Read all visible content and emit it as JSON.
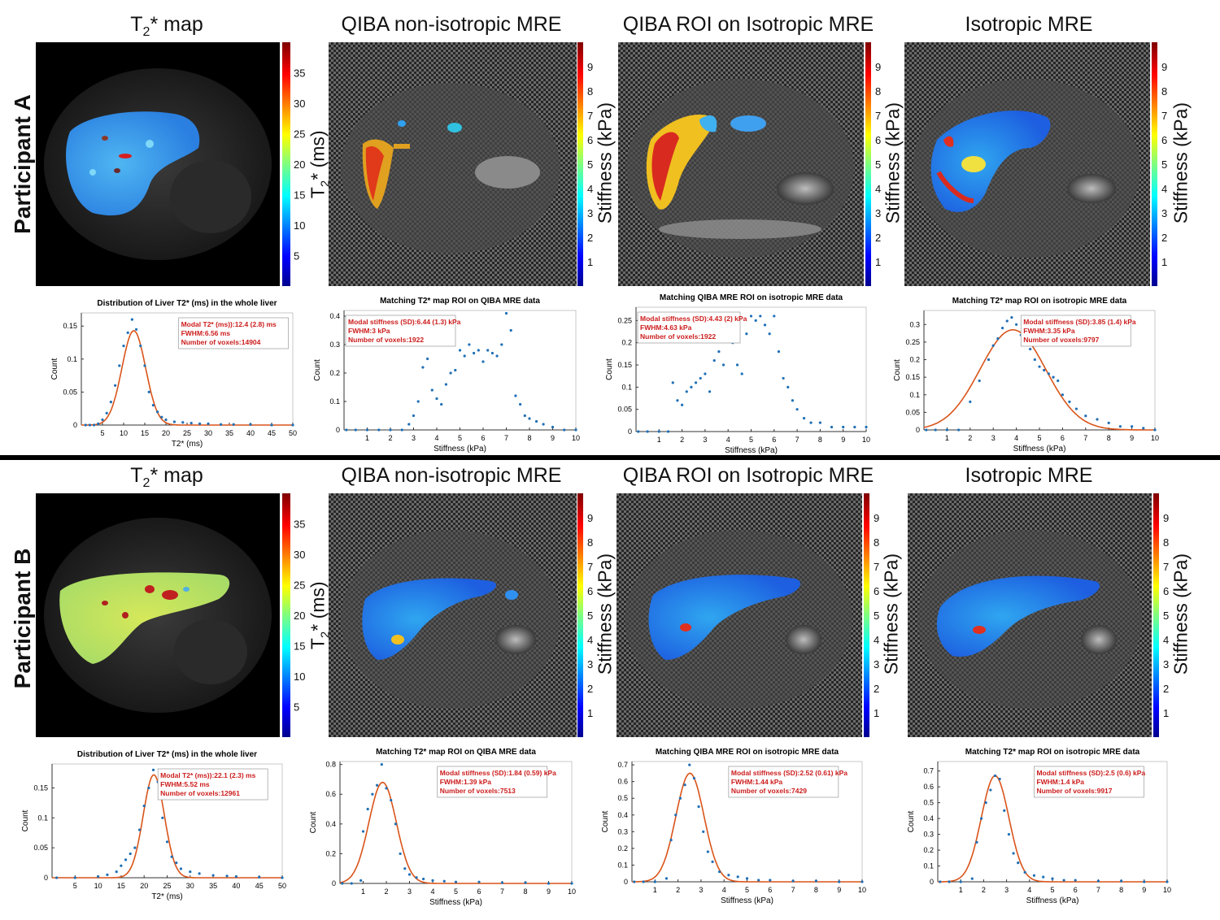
{
  "row_labels": [
    "Participant A",
    "Participant B"
  ],
  "panel_titles": {
    "t2": "T2* map",
    "qiba": "QIBA non-isotropic MRE",
    "qiba_roi": "QIBA ROI on Isotropic MRE",
    "iso": "Isotropic MRE"
  },
  "colorbar_labels": {
    "t2": "T2* (ms)",
    "stiff": "Stiffness (kPa)"
  },
  "colorbar_ticks": {
    "t2": [
      "5",
      "10",
      "15",
      "20",
      "25",
      "30",
      "35"
    ],
    "stiff": [
      "1",
      "2",
      "3",
      "4",
      "5",
      "6",
      "7",
      "8",
      "9"
    ]
  },
  "colors": {
    "liver_blue": "#2f8fe8",
    "liver_green": "#b8e055",
    "hot": "#d42020",
    "curve": "#d9541a",
    "dots": "#1f6fb5",
    "legend_text": "#cc1c1c"
  },
  "chart_data": [
    {
      "id": "A1",
      "type": "scatter",
      "title": "Distribution of Liver T2* (ms) in the whole liver",
      "xlabel": "T2* (ms)",
      "ylabel": "Count",
      "xlim": [
        0,
        50
      ],
      "ylim": [
        0,
        0.17
      ],
      "xticks": [
        5,
        10,
        15,
        20,
        25,
        30,
        35,
        40,
        45,
        50
      ],
      "yticks": [
        0,
        0.05,
        0.1,
        0.15
      ],
      "legend": [
        "Modal T2* (ms)):12.4 (2.8) ms",
        "FWHM:6.56 ms",
        "Number of voxels:14904"
      ],
      "fit": {
        "mu": 12.4,
        "sigma": 2.8,
        "amp": 0.143
      },
      "x": [
        1,
        2,
        3,
        4,
        5,
        6,
        7,
        8,
        9,
        10,
        11,
        12,
        13,
        14,
        15,
        16,
        17,
        18,
        19,
        20,
        22,
        24,
        26,
        28,
        30,
        33,
        36,
        40,
        45,
        50
      ],
      "y": [
        0,
        0,
        0,
        0.002,
        0.008,
        0.018,
        0.035,
        0.06,
        0.09,
        0.12,
        0.14,
        0.16,
        0.145,
        0.12,
        0.09,
        0.05,
        0.03,
        0.02,
        0.012,
        0.008,
        0.005,
        0.004,
        0.003,
        0.002,
        0.002,
        0.001,
        0.001,
        0.001,
        0,
        0
      ]
    },
    {
      "id": "A2",
      "type": "scatter",
      "title": "Matching T2* map ROI on QIBA MRE data",
      "xlabel": "Stiffness (kPa)",
      "ylabel": "Count",
      "xlim": [
        0,
        10
      ],
      "ylim": [
        0,
        0.42
      ],
      "xticks": [
        1,
        2,
        3,
        4,
        5,
        6,
        7,
        8,
        9,
        10
      ],
      "yticks": [
        0,
        0.1,
        0.2,
        0.3,
        0.4
      ],
      "legend": [
        "Modal stiffness (SD):6.44 (1.3) kPa",
        "FWHM:3 kPa",
        "Number of voxels:1922"
      ],
      "x": [
        0.1,
        0.5,
        1,
        1.5,
        2,
        2.5,
        2.8,
        3,
        3.2,
        3.4,
        3.6,
        3.8,
        4,
        4.2,
        4.4,
        4.6,
        4.8,
        5,
        5.2,
        5.4,
        5.6,
        5.8,
        6,
        6.2,
        6.4,
        6.6,
        6.8,
        7,
        7.2,
        7.4,
        7.6,
        7.8,
        8,
        8.3,
        8.6,
        9,
        9.5,
        10
      ],
      "y": [
        0,
        0,
        0,
        0,
        0,
        0,
        0.02,
        0.05,
        0.1,
        0.22,
        0.25,
        0.14,
        0.11,
        0.09,
        0.16,
        0.2,
        0.21,
        0.28,
        0.26,
        0.3,
        0.27,
        0.28,
        0.24,
        0.28,
        0.27,
        0.26,
        0.3,
        0.41,
        0.35,
        0.12,
        0.09,
        0.05,
        0.04,
        0.03,
        0.02,
        0.01,
        0,
        0
      ]
    },
    {
      "id": "A3",
      "type": "scatter",
      "title": "Matching QIBA MRE ROI on isotropic MRE data",
      "xlabel": "Stiffness (kPa)",
      "ylabel": "Count",
      "xlim": [
        0,
        10
      ],
      "ylim": [
        0,
        0.28
      ],
      "xticks": [
        1,
        2,
        3,
        4,
        5,
        6,
        7,
        8,
        9,
        10
      ],
      "yticks": [
        0,
        0.05,
        0.1,
        0.15,
        0.2,
        0.25
      ],
      "legend": [
        "Modal stiffness (SD):4.43 (2) kPa",
        "FWHM:4.63 kPa",
        "Number of voxels:1922"
      ],
      "x": [
        0.1,
        0.5,
        1,
        1.4,
        1.6,
        1.8,
        2,
        2.2,
        2.4,
        2.6,
        2.8,
        3,
        3.2,
        3.4,
        3.6,
        3.8,
        4,
        4.2,
        4.4,
        4.6,
        4.8,
        5,
        5.2,
        5.4,
        5.6,
        5.8,
        6,
        6.2,
        6.4,
        6.6,
        6.8,
        7,
        7.3,
        7.6,
        8,
        8.5,
        9,
        9.5,
        10
      ],
      "y": [
        0,
        0,
        0,
        0,
        0.11,
        0.07,
        0.06,
        0.09,
        0.1,
        0.11,
        0.12,
        0.13,
        0.09,
        0.16,
        0.18,
        0.15,
        0.24,
        0.2,
        0.15,
        0.13,
        0.22,
        0.26,
        0.25,
        0.26,
        0.24,
        0.22,
        0.26,
        0.18,
        0.12,
        0.1,
        0.07,
        0.05,
        0.03,
        0.02,
        0.02,
        0.01,
        0.01,
        0.01,
        0.01
      ]
    },
    {
      "id": "A4",
      "type": "scatter",
      "title": "Matching T2* map ROI on isotropic MRE data",
      "xlabel": "Stiffness (kPa)",
      "ylabel": "Count",
      "xlim": [
        0,
        10
      ],
      "ylim": [
        0,
        0.34
      ],
      "xticks": [
        1,
        2,
        3,
        4,
        5,
        6,
        7,
        8,
        9,
        10
      ],
      "yticks": [
        0,
        0.05,
        0.1,
        0.15,
        0.2,
        0.25,
        0.3
      ],
      "legend": [
        "Modal stiffness (SD):3.85 (1.4) kPa",
        "FWHM:3.35 kPa",
        "Number of voxels:9797"
      ],
      "fit": {
        "mu": 3.85,
        "sigma": 1.42,
        "amp": 0.285
      },
      "x": [
        0.1,
        0.5,
        1,
        1.5,
        2,
        2.4,
        2.8,
        3,
        3.2,
        3.4,
        3.6,
        3.8,
        4,
        4.2,
        4.4,
        4.6,
        4.8,
        5,
        5.2,
        5.4,
        5.6,
        5.8,
        6,
        6.3,
        6.6,
        7,
        7.5,
        8,
        8.5,
        9,
        9.5,
        10
      ],
      "y": [
        0,
        0,
        0,
        0,
        0.08,
        0.14,
        0.2,
        0.24,
        0.26,
        0.29,
        0.31,
        0.32,
        0.3,
        0.27,
        0.25,
        0.23,
        0.2,
        0.18,
        0.17,
        0.16,
        0.15,
        0.14,
        0.1,
        0.08,
        0.06,
        0.04,
        0.03,
        0.02,
        0.01,
        0.01,
        0.005,
        0
      ]
    },
    {
      "id": "B1",
      "type": "scatter",
      "title": "Distribution of Liver T2* (ms) in the whole liver",
      "xlabel": "T2* (ms)",
      "ylabel": "Count",
      "xlim": [
        0,
        50
      ],
      "ylim": [
        0,
        0.19
      ],
      "xticks": [
        5,
        10,
        15,
        20,
        25,
        30,
        35,
        40,
        45,
        50
      ],
      "yticks": [
        0,
        0.05,
        0.1,
        0.15
      ],
      "legend": [
        "Modal T2* (ms)):22.1 (2.3) ms",
        "FWHM:5.52 ms",
        "Number of voxels:12961"
      ],
      "fit": {
        "mu": 22.1,
        "sigma": 2.3,
        "amp": 0.172
      },
      "x": [
        1,
        5,
        10,
        12,
        14,
        15,
        16,
        17,
        18,
        19,
        20,
        21,
        22,
        23,
        24,
        25,
        26,
        27,
        28,
        30,
        32,
        35,
        38,
        40,
        45,
        50
      ],
      "y": [
        0,
        0,
        0.002,
        0.005,
        0.01,
        0.02,
        0.03,
        0.04,
        0.05,
        0.08,
        0.12,
        0.15,
        0.18,
        0.16,
        0.1,
        0.06,
        0.035,
        0.025,
        0.015,
        0.01,
        0.007,
        0.004,
        0.003,
        0.002,
        0.001,
        0
      ]
    },
    {
      "id": "B2",
      "type": "scatter",
      "title": "Matching T2* map ROI on QIBA MRE data",
      "xlabel": "Stiffness (kPa)",
      "ylabel": "Count",
      "xlim": [
        0,
        10
      ],
      "ylim": [
        0,
        0.82
      ],
      "xticks": [
        1,
        2,
        3,
        4,
        5,
        6,
        7,
        8,
        9,
        10
      ],
      "yticks": [
        0,
        0.2,
        0.4,
        0.6,
        0.8
      ],
      "legend": [
        "Modal stiffness (SD):1.84 (0.59) kPa",
        "FWHM:1.39 kPa",
        "Number of voxels:7513"
      ],
      "fit": {
        "mu": 1.84,
        "sigma": 0.59,
        "amp": 0.68
      },
      "x": [
        0.1,
        0.5,
        0.9,
        1,
        1.2,
        1.4,
        1.6,
        1.8,
        2,
        2.2,
        2.4,
        2.6,
        2.8,
        3,
        3.3,
        3.6,
        4,
        4.5,
        5,
        6,
        7,
        8,
        9,
        10
      ],
      "y": [
        0,
        0,
        0.02,
        0.35,
        0.5,
        0.6,
        0.66,
        0.8,
        0.64,
        0.56,
        0.4,
        0.2,
        0.1,
        0.06,
        0.04,
        0.03,
        0.02,
        0.015,
        0.01,
        0.01,
        0.005,
        0.005,
        0,
        0
      ]
    },
    {
      "id": "B3",
      "type": "scatter",
      "title": "Matching QIBA MRE ROI on isotropic MRE data",
      "xlabel": "Stiffness (kPa)",
      "ylabel": "Count",
      "xlim": [
        0,
        10
      ],
      "ylim": [
        0,
        0.72
      ],
      "xticks": [
        1,
        2,
        3,
        4,
        5,
        6,
        7,
        8,
        9,
        10
      ],
      "yticks": [
        0,
        0.1,
        0.2,
        0.3,
        0.4,
        0.5,
        0.6,
        0.7
      ],
      "legend": [
        "Modal stiffness (SD):2.52 (0.61) kPa",
        "FWHM:1.44 kPa",
        "Number of voxels:7429"
      ],
      "fit": {
        "mu": 2.52,
        "sigma": 0.61,
        "amp": 0.65
      },
      "x": [
        0.1,
        0.5,
        1,
        1.5,
        1.7,
        1.9,
        2.1,
        2.3,
        2.5,
        2.7,
        2.9,
        3.1,
        3.3,
        3.5,
        3.8,
        4.2,
        4.6,
        5,
        5.5,
        6,
        7,
        8,
        9,
        10
      ],
      "y": [
        0,
        0,
        0,
        0.02,
        0.25,
        0.4,
        0.5,
        0.58,
        0.7,
        0.62,
        0.45,
        0.3,
        0.18,
        0.12,
        0.06,
        0.04,
        0.03,
        0.02,
        0.01,
        0.01,
        0.005,
        0.005,
        0,
        0
      ]
    },
    {
      "id": "B4",
      "type": "scatter",
      "title": "Matching T2* map ROI on isotropic MRE data",
      "xlabel": "Stiffness (kPa)",
      "ylabel": "Count",
      "xlim": [
        0,
        10
      ],
      "ylim": [
        0,
        0.76
      ],
      "xticks": [
        1,
        2,
        3,
        4,
        5,
        6,
        7,
        8,
        9,
        10
      ],
      "yticks": [
        0,
        0.1,
        0.2,
        0.3,
        0.4,
        0.5,
        0.6,
        0.7
      ],
      "legend": [
        "Modal stiffness (SD):2.5 (0.6) kPa",
        "FWHM:1.4 kPa",
        "Number of voxels:9917"
      ],
      "fit": {
        "mu": 2.5,
        "sigma": 0.6,
        "amp": 0.67
      },
      "x": [
        0.1,
        0.5,
        1,
        1.5,
        1.7,
        1.9,
        2.1,
        2.3,
        2.5,
        2.7,
        2.9,
        3.1,
        3.3,
        3.5,
        3.8,
        4.2,
        4.6,
        5,
        5.5,
        6,
        7,
        8,
        9,
        10
      ],
      "y": [
        0,
        0,
        0,
        0.02,
        0.25,
        0.4,
        0.5,
        0.58,
        0.67,
        0.65,
        0.45,
        0.3,
        0.18,
        0.12,
        0.06,
        0.04,
        0.03,
        0.02,
        0.01,
        0.01,
        0.005,
        0.005,
        0,
        0
      ]
    }
  ]
}
